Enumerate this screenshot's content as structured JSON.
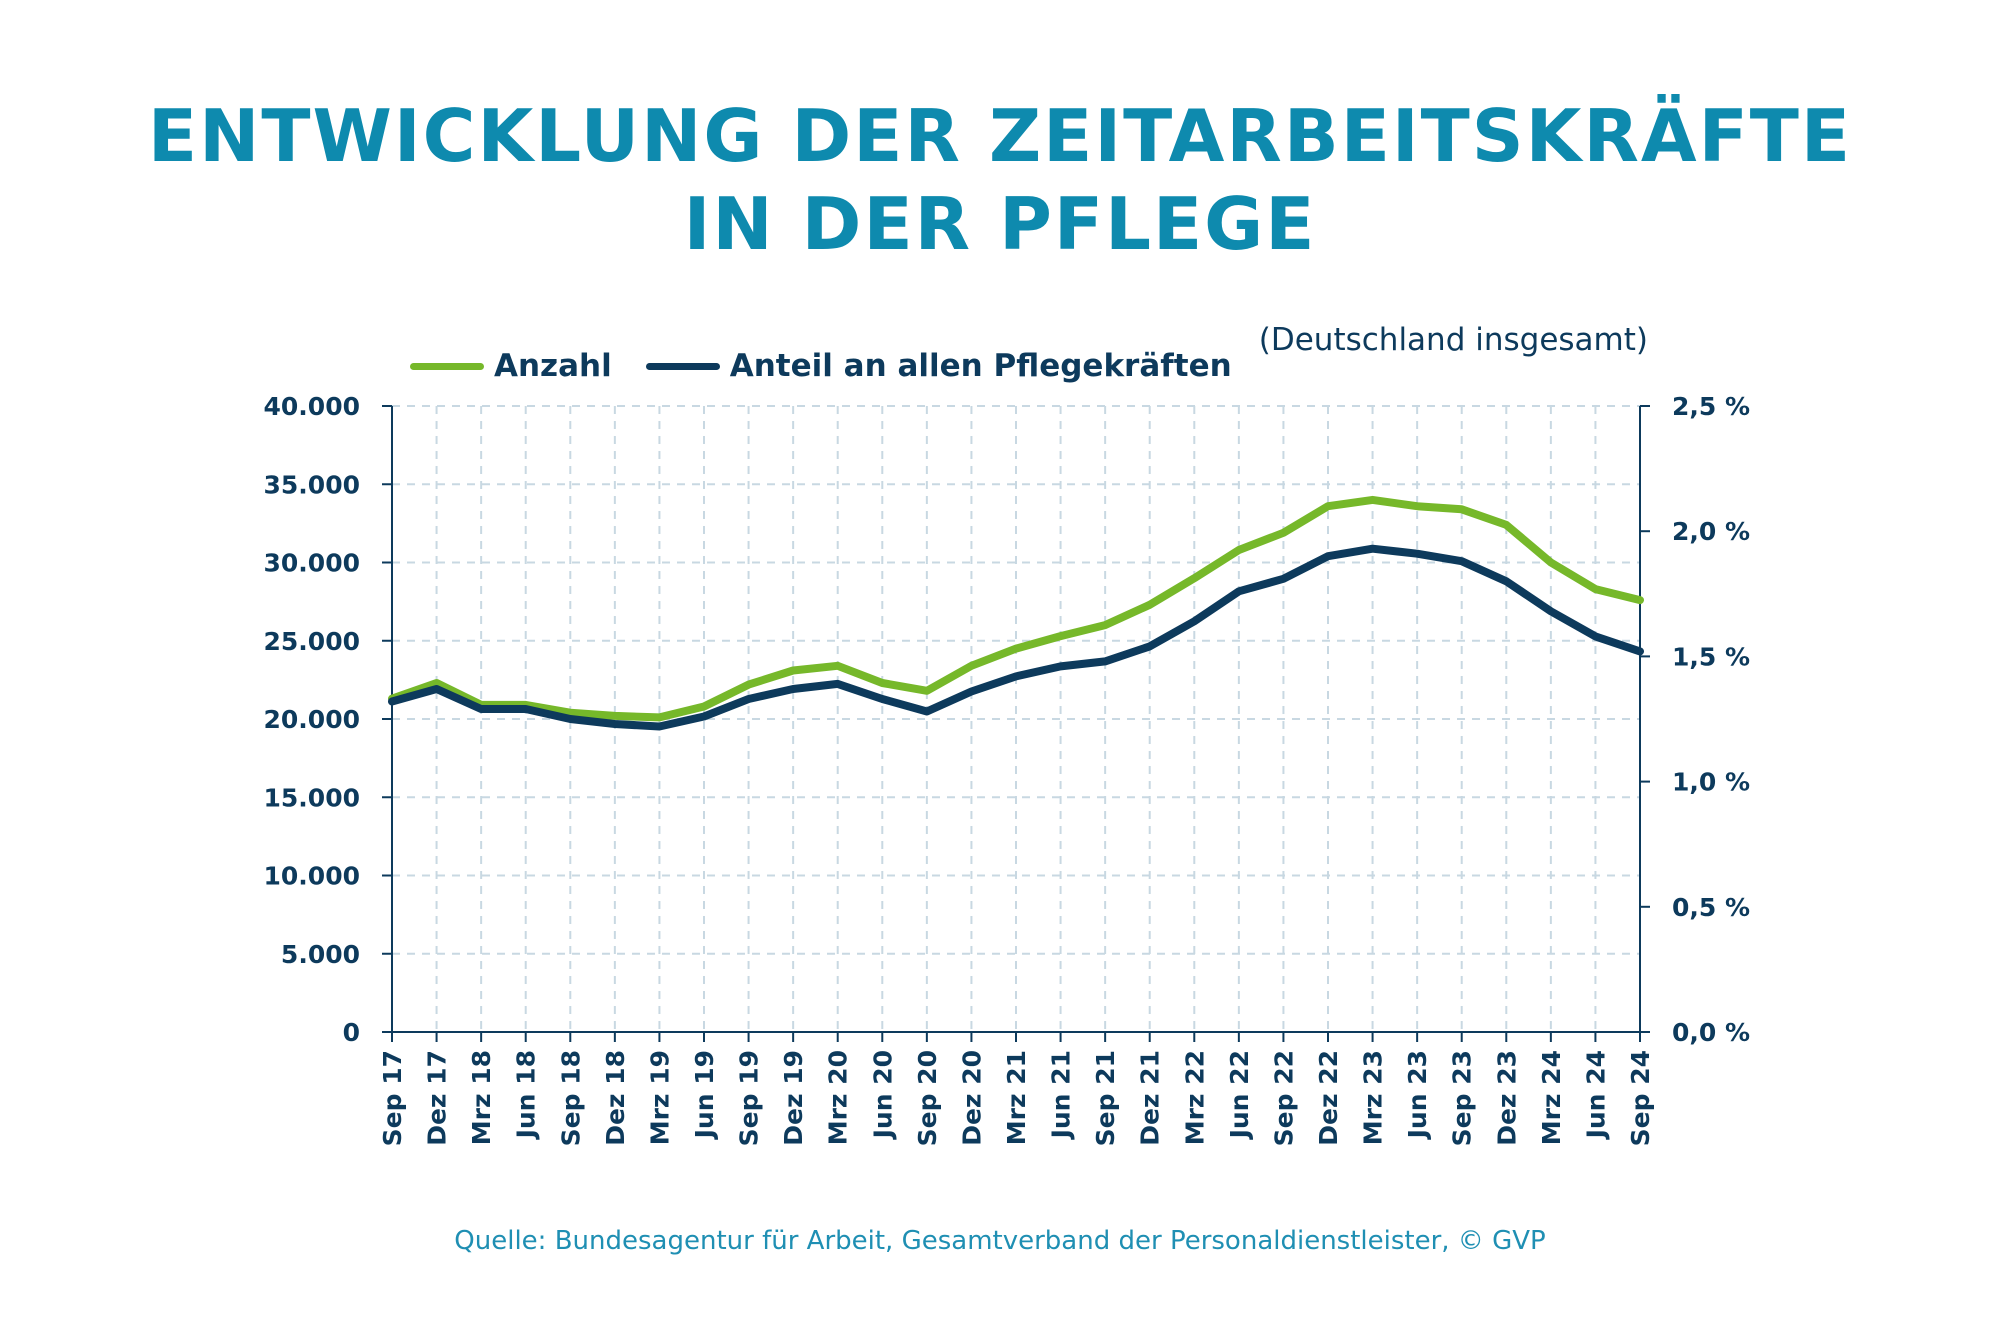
{
  "header": {
    "title_line1": "ENTWICKLUNG DER ZEITARBEITSKRÄFTE",
    "title_line2": "IN DER PFLEGE",
    "subtitle": "(Deutschland insgesamt)"
  },
  "footer": {
    "source": "Quelle: Bundesagentur für Arbeit, Gesamtverband der Personaldienstleister, © GVP"
  },
  "colors": {
    "title": "#0e8aae",
    "anzahl": "#76b82a",
    "anteil": "#0d3a5c",
    "grid": "#c8d8e2",
    "axis": "#0d3a5c"
  },
  "chart_data": {
    "type": "line",
    "title": "ENTWICKLUNG DER ZEITARBEITSKRÄFTE IN DER PFLEGE",
    "subtitle": "(Deutschland insgesamt)",
    "legend_position": "top-left",
    "grid": true,
    "categories": [
      "Sep 17",
      "Dez 17",
      "Mrz 18",
      "Jun 18",
      "Sep 18",
      "Dez 18",
      "Mrz 19",
      "Jun 19",
      "Sep 19",
      "Dez 19",
      "Mrz 20",
      "Jun 20",
      "Sep 20",
      "Dez 20",
      "Mrz 21",
      "Jun 21",
      "Sep 21",
      "Dez 21",
      "Mrz 22",
      "Jun 22",
      "Sep 22",
      "Dez 22",
      "Mrz 23",
      "Jun 23",
      "Sep 23",
      "Dez 23",
      "Mrz 24",
      "Jun 24",
      "Sep 24"
    ],
    "y_left": {
      "ylim": [
        0,
        40000
      ],
      "ticks": [
        0,
        5000,
        10000,
        15000,
        20000,
        25000,
        30000,
        35000,
        40000
      ],
      "tick_labels": [
        "0",
        "5.000",
        "10.000",
        "15.000",
        "20.000",
        "25.000",
        "30.000",
        "35.000",
        "40.000"
      ]
    },
    "y_right": {
      "ylim": [
        0,
        2.5
      ],
      "ticks": [
        0,
        0.5,
        1.0,
        1.5,
        2.0,
        2.5
      ],
      "tick_labels": [
        "0,0 %",
        "0,5 %",
        "1,0 %",
        "1,5 %",
        "2,0 %",
        "2,5 %"
      ]
    },
    "series": [
      {
        "name": "Anzahl",
        "axis": "left",
        "color": "#76b82a",
        "values": [
          21300,
          22300,
          20900,
          20900,
          20400,
          20200,
          20100,
          20800,
          22200,
          23100,
          23400,
          22300,
          21800,
          23400,
          24500,
          25300,
          26000,
          27300,
          29000,
          30800,
          31900,
          33600,
          34000,
          33600,
          33400,
          32400,
          30000,
          28300,
          27600
        ]
      },
      {
        "name": "Anteil an allen Pflegekräften",
        "axis": "right",
        "color": "#0d3a5c",
        "values": [
          1.32,
          1.37,
          1.29,
          1.29,
          1.25,
          1.23,
          1.22,
          1.26,
          1.33,
          1.37,
          1.39,
          1.33,
          1.28,
          1.36,
          1.42,
          1.46,
          1.48,
          1.54,
          1.64,
          1.76,
          1.81,
          1.9,
          1.93,
          1.91,
          1.88,
          1.8,
          1.68,
          1.58,
          1.52
        ]
      }
    ]
  }
}
